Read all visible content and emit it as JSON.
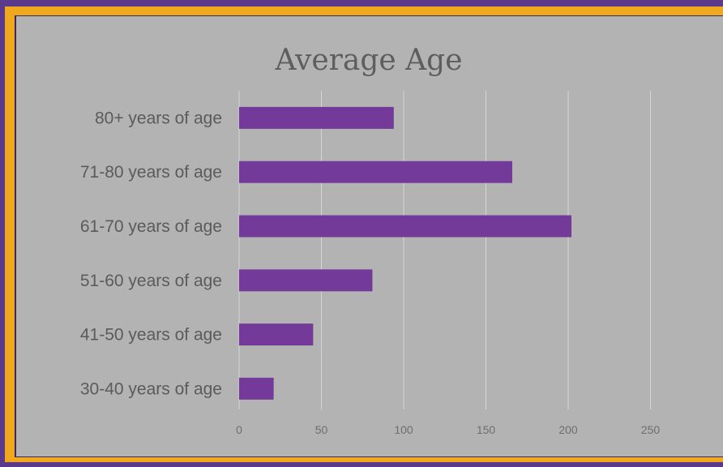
{
  "chart_data": {
    "type": "bar",
    "orientation": "horizontal",
    "title": "Average Age",
    "xlabel": "",
    "ylabel": "",
    "categories": [
      "80+ years of age",
      "71-80 years of age",
      "61-70 years of age",
      "51-60 years of age",
      "41-50 years of age",
      "30-40 years of age"
    ],
    "values": [
      94,
      166,
      202,
      81,
      45,
      21
    ],
    "xlim": [
      0,
      275
    ],
    "xticks": [
      0,
      50,
      100,
      150,
      200,
      250
    ],
    "grid": true,
    "legend": "none"
  },
  "colors": {
    "bar": "#733a9a",
    "outer_frame": "#5b3a8c",
    "accent_border": "#f0a81e",
    "panel_background": "#b3b3b3"
  }
}
